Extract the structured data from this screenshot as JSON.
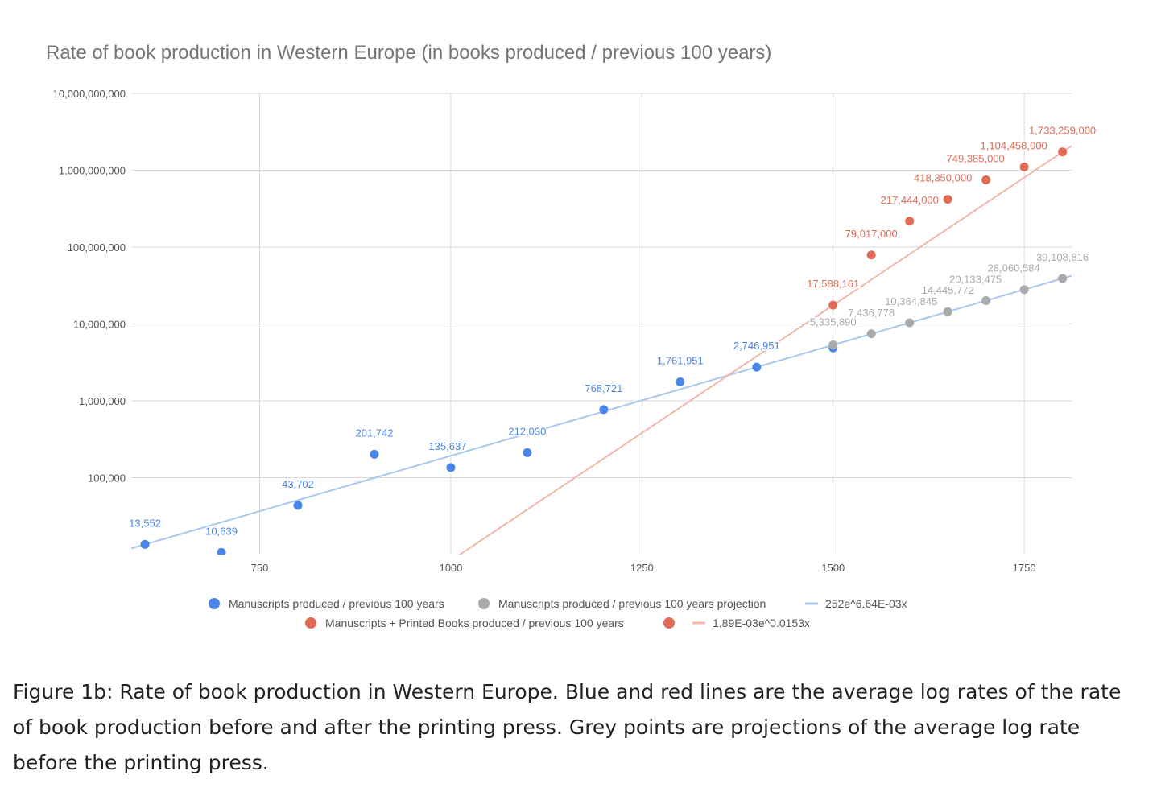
{
  "chart_data": {
    "type": "scatter",
    "title": "Rate of book production in Western Europe (in books produced / previous 100 years)",
    "xlabel": "",
    "ylabel": "",
    "yscale": "log",
    "xlim": [
      582,
      1812
    ],
    "ylim": [
      10000,
      10000000000
    ],
    "xticks": [
      750,
      1000,
      1250,
      1500,
      1750
    ],
    "yticks": [
      {
        "value": 100000,
        "label": "100,000"
      },
      {
        "value": 1000000,
        "label": "1,000,000"
      },
      {
        "value": 10000000,
        "label": "10,000,000"
      },
      {
        "value": 100000000,
        "label": "100,000,000"
      },
      {
        "value": 1000000000,
        "label": "1,000,000,000"
      },
      {
        "value": 10000000000,
        "label": "10,000,000,000"
      }
    ],
    "series": [
      {
        "name": "Manuscripts produced / previous 100 years",
        "color": "#4a86e8",
        "points": [
          {
            "x": 600,
            "y": 13552,
            "label": "13,552"
          },
          {
            "x": 700,
            "y": 10639,
            "label": "10,639"
          },
          {
            "x": 800,
            "y": 43702,
            "label": "43,702"
          },
          {
            "x": 900,
            "y": 201742,
            "label": "201,742"
          },
          {
            "x": 1000,
            "y": 135637,
            "label": "135,637"
          },
          {
            "x": 1100,
            "y": 212030,
            "label": "212,030"
          },
          {
            "x": 1200,
            "y": 768721,
            "label": "768,721"
          },
          {
            "x": 1300,
            "y": 1761951,
            "label": "1,761,951"
          },
          {
            "x": 1400,
            "y": 2746951,
            "label": "2,746,951"
          },
          {
            "x": 1500,
            "y": 4880000,
            "label": ""
          }
        ]
      },
      {
        "name": "Manuscripts produced / previous 100 years projection",
        "color": "#aaaaaa",
        "points": [
          {
            "x": 1500,
            "y": 5335890,
            "label": "5,335,890"
          },
          {
            "x": 1550,
            "y": 7436778,
            "label": "7,436,778"
          },
          {
            "x": 1600,
            "y": 10364845,
            "label": "10,364,845"
          },
          {
            "x": 1650,
            "y": 14445772,
            "label": "14,445,772"
          },
          {
            "x": 1700,
            "y": 20133475,
            "label": "20,133,475"
          },
          {
            "x": 1750,
            "y": 28060584,
            "label": "28,060,584"
          },
          {
            "x": 1800,
            "y": 39108816,
            "label": "39,108,816"
          }
        ]
      },
      {
        "name": "Manuscripts + Printed Books produced / previous 100 years",
        "color": "#e06c57",
        "points": [
          {
            "x": 1500,
            "y": 17588161,
            "label": "17,588,161"
          },
          {
            "x": 1550,
            "y": 79017000,
            "label": "79,017,000"
          },
          {
            "x": 1600,
            "y": 217444000,
            "label": "217,444,000"
          },
          {
            "x": 1650,
            "y": 418350000,
            "label": "418,350,000"
          },
          {
            "x": 1700,
            "y": 749385000,
            "label": "749,385,000"
          },
          {
            "x": 1750,
            "y": 1104458000,
            "label": "1,104,458,000"
          },
          {
            "x": 1800,
            "y": 1733259000,
            "label": "1,733,259,000"
          }
        ]
      }
    ],
    "trendlines": [
      {
        "name": "252e^6.64E-03x",
        "a": 252,
        "b": 0.00664,
        "x_range": [
          582,
          1812
        ],
        "color": "#a9c7ee"
      },
      {
        "name": "1.89E-03e^0.0153x",
        "a": 0.00189,
        "b": 0.0153,
        "x_range": [
          582,
          1812
        ],
        "color": "#f2b8ab"
      }
    ],
    "legend": {
      "position": "bottom",
      "items": [
        {
          "label": "Manuscripts produced / previous 100 years",
          "kind": "dot",
          "color": "#4a86e8"
        },
        {
          "label": "Manuscripts produced / previous 100 years projection",
          "kind": "dot",
          "color": "#aaaaaa"
        },
        {
          "label": "252e^6.64E-03x",
          "kind": "line",
          "color": "#a9c7ee"
        },
        {
          "label": "Manuscripts + Printed Books produced / previous 100 years",
          "kind": "dot",
          "color": "#e06c57"
        },
        {
          "label": "",
          "kind": "dot",
          "color": "#e06c57"
        },
        {
          "label": "1.89E-03e^0.0153x",
          "kind": "line",
          "color": "#f2b8ab"
        }
      ]
    }
  },
  "caption": "Figure 1b: Rate of book production in Western Europe. Blue and red lines are the average log rates of the rate of book production before and after the printing press. Grey points are projections of the average log rate before the printing press."
}
